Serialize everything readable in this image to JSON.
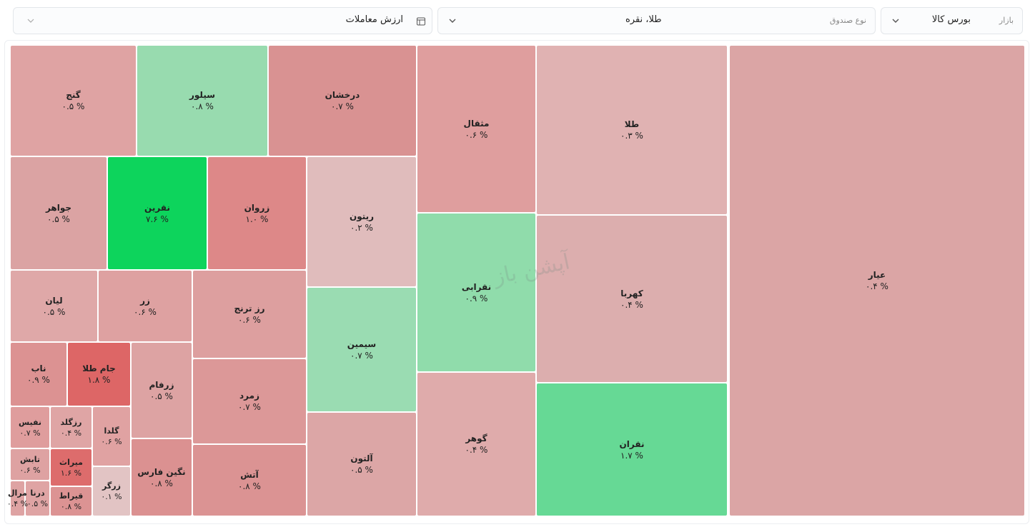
{
  "filters": [
    {
      "label": "بازار",
      "value": "بورس کالا"
    },
    {
      "label": "نوع صندوق",
      "value": "طلا، نقره"
    },
    {
      "value": "ارزش معاملات"
    }
  ],
  "watermark": "آپشن باز",
  "tiles": [
    {
      "name": "عیار",
      "label": "۰.۴ %",
      "color": "#dba5a5"
    },
    {
      "name": "طلا",
      "label": "۰.۳ %",
      "color": "#e0b2b2"
    },
    {
      "name": "کهربا",
      "label": "۰.۴ %",
      "color": "#dcaeae"
    },
    {
      "name": "نقران",
      "label": "۱.۷ %",
      "color": "#66d995"
    },
    {
      "name": "مثقال",
      "label": "۰.۶ %",
      "color": "#df9e9e"
    },
    {
      "name": "نقرابی",
      "label": "۰.۹ %",
      "color": "#90dcab"
    },
    {
      "name": "گوهر",
      "label": "۰.۴ %",
      "color": "#dfabab"
    },
    {
      "name": "درخشان",
      "label": "۰.۷ %",
      "color": "#d99292"
    },
    {
      "name": "سیلور",
      "label": "۰.۸ %",
      "color": "#98dbaf"
    },
    {
      "name": "گنج",
      "label": "۰.۵ %",
      "color": "#dfa3a3"
    },
    {
      "name": "ریتون",
      "label": "۰.۲ %",
      "color": "#e0bcbc"
    },
    {
      "name": "سیمین",
      "label": "۰.۷ %",
      "color": "#9adcb2"
    },
    {
      "name": "آلتون",
      "label": "۰.۵ %",
      "color": "#dca6a6"
    },
    {
      "name": "زروان",
      "label": "۱.۰ %",
      "color": "#dd8888"
    },
    {
      "name": "نقرین",
      "label": "۷.۶ %",
      "color": "#0dd45c"
    },
    {
      "name": "جواهر",
      "label": "۰.۵ %",
      "color": "#dba3a3"
    },
    {
      "name": "رز ترنج",
      "label": "۰.۶ %",
      "color": "#dd9f9f"
    },
    {
      "name": "زمرد",
      "label": "۰.۷ %",
      "color": "#dc9898"
    },
    {
      "name": "آتش",
      "label": "۰.۸ %",
      "color": "#db9393"
    },
    {
      "name": "زر",
      "label": "۰.۶ %",
      "color": "#dea1a1"
    },
    {
      "name": "لیان",
      "label": "۰.۵ %",
      "color": "#dfa8a8"
    },
    {
      "name": "زرفام",
      "label": "۰.۵ %",
      "color": "#dda3a3"
    },
    {
      "name": "نگین فارس",
      "label": "۰.۸ %",
      "color": "#db9191"
    },
    {
      "name": "جام طلا",
      "label": "۱.۸ %",
      "color": "#dd6666"
    },
    {
      "name": "ناب",
      "label": "۰.۹ %",
      "color": "#dc9292"
    },
    {
      "name": "گلدا",
      "label": "۰.۶ %",
      "color": "#e0a2a2"
    },
    {
      "name": "زرگر",
      "label": "۰.۱ %",
      "color": "#e2c4c4"
    },
    {
      "name": "رزگلد",
      "label": "۰.۴ %",
      "color": "#dfa5a5"
    },
    {
      "name": "نفیس",
      "label": "۰.۷ %",
      "color": "#df9d9d"
    },
    {
      "name": "میراث",
      "label": "۱.۶ %",
      "color": "#dd6c6c"
    },
    {
      "name": "تابش",
      "label": "۰.۶ %",
      "color": "#dea2a2"
    },
    {
      "name": "قیراط",
      "label": "۰.۸ %",
      "color": "#dc9393"
    },
    {
      "name": "درنا",
      "label": "۰.۵ %",
      "color": "#dfa4a4"
    },
    {
      "name": "مرال",
      "label": "۰.۴ %",
      "color": "#dea3a3"
    }
  ]
}
